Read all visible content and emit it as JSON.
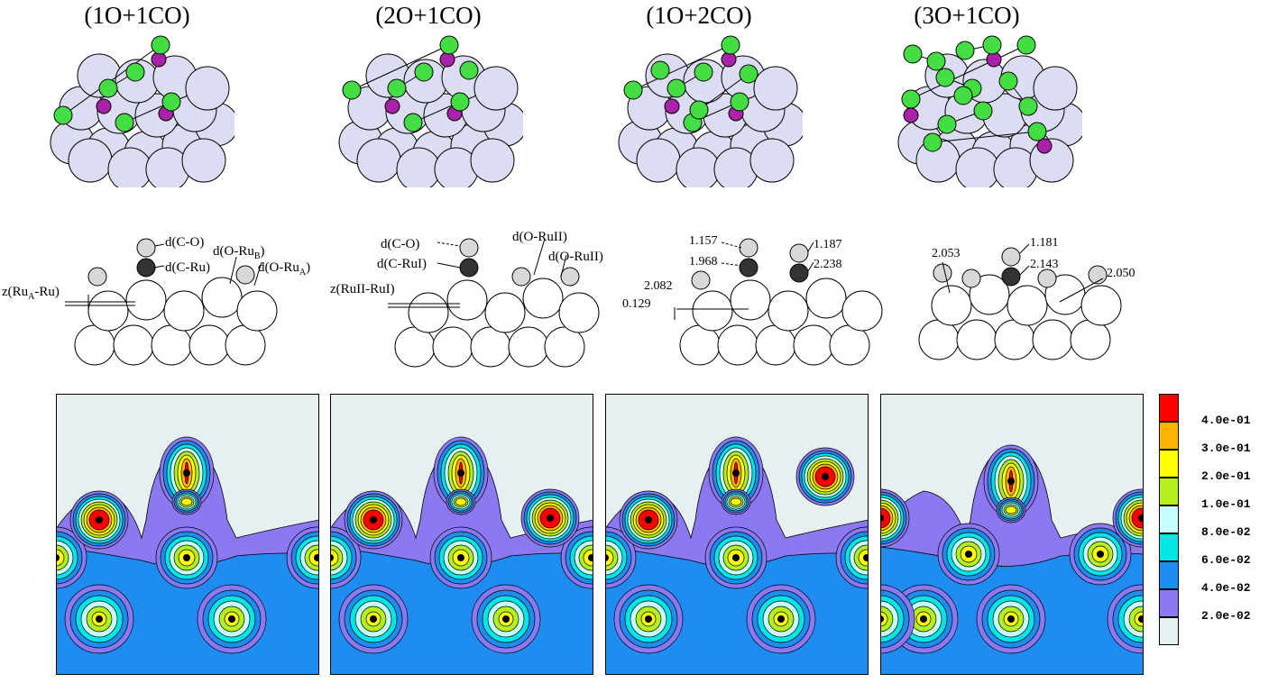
{
  "panels": [
    {
      "title": "(1O+1CO)"
    },
    {
      "title": "(2O+1CO)"
    },
    {
      "title": "(1O+2CO)"
    },
    {
      "title": "(3O+1CO)"
    }
  ],
  "side_labels": {
    "p1": {
      "dco": "d(C-O)",
      "dcru": "d(C-Ru)",
      "doru_b": "d(O-Ru",
      "sub_b": "B",
      "close_b": ")",
      "doru_a": "d(O-Ru",
      "sub_a": "A",
      "close_a": ")",
      "z": "z(Ru",
      "zsub": "A",
      "zend": "-Ru)"
    },
    "p2": {
      "dco": "d(C-O)",
      "dcru": "d(C-RuI)",
      "doru1": "d(O-RuII)",
      "doru2": "d(O-RuII)",
      "z": "z(RuII-RuI)"
    },
    "p3": {
      "a": "1.157",
      "b": "1.968",
      "c": "2.082",
      "d": "0.129",
      "e": "1.187",
      "f": "2.238"
    },
    "p4": {
      "a": "2.053",
      "b": "1.181",
      "c": "2.143",
      "d": "2.050"
    }
  },
  "legend": [
    {
      "label": "4.0e-01",
      "color": "#ff0000"
    },
    {
      "label": "3.0e-01",
      "color": "#ffb400"
    },
    {
      "label": "2.0e-01",
      "color": "#ffff00"
    },
    {
      "label": "1.0e-01",
      "color": "#b4f01e"
    },
    {
      "label": "8.0e-02",
      "color": "#c8ffff"
    },
    {
      "label": "6.0e-02",
      "color": "#00e6e6"
    },
    {
      "label": "4.0e-02",
      "color": "#1e8cf0"
    },
    {
      "label": "2.0e-02",
      "color": "#8c78f0"
    },
    {
      "label": "",
      "color": "#e6f0f0"
    }
  ],
  "colors": {
    "ru": "#dcdcf2",
    "o_green": "#44dd44",
    "c_purple": "#aa22aa",
    "bg": "#e6f0f0",
    "lvl1": "#8c78f0",
    "lvl2": "#1e8cf0",
    "lvl3": "#00e6e6",
    "lvl4": "#c8ffff",
    "lvl5": "#b4f01e",
    "lvl6": "#ffff00",
    "lvl7": "#ffb400",
    "lvl8": "#ff0000"
  }
}
